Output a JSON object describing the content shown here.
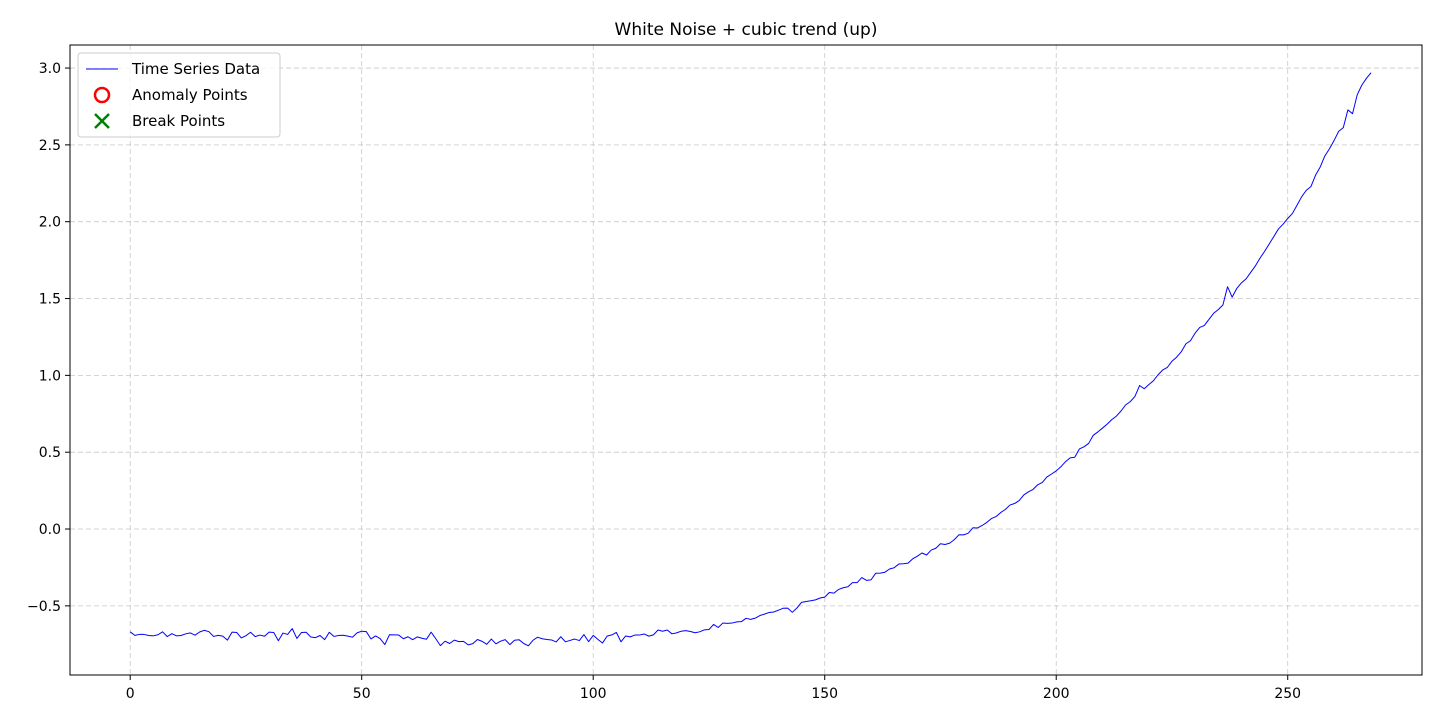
{
  "chart_data": {
    "type": "line",
    "title": "White Noise + cubic trend (up)",
    "xlabel": "",
    "ylabel": "",
    "xlim": [
      -13,
      279
    ],
    "ylim": [
      -0.95,
      3.15
    ],
    "xticks": [
      0,
      50,
      100,
      150,
      200,
      250
    ],
    "yticks": [
      -0.5,
      0.0,
      0.5,
      1.0,
      1.5,
      2.0,
      2.5,
      3.0
    ],
    "xtick_labels": [
      "0",
      "50",
      "100",
      "150",
      "200",
      "250"
    ],
    "ytick_labels": [
      "−0.5",
      "0.0",
      "0.5",
      "1.0",
      "1.5",
      "2.0",
      "2.5",
      "3.0"
    ],
    "grid": true,
    "legend": {
      "placement": "top-left",
      "entries": [
        {
          "label": "Time Series Data",
          "marker": "line",
          "color": "#0000ff"
        },
        {
          "label": "Anomaly Points",
          "marker": "circle",
          "color": "#ff0000"
        },
        {
          "label": "Break Points",
          "marker": "x",
          "color": "#008000"
        }
      ]
    },
    "series": [
      {
        "name": "Time Series Data",
        "color": "#0000ff",
        "x_start": 0,
        "x_step": 1,
        "values": [
          -0.669,
          -0.692,
          -0.686,
          -0.686,
          -0.693,
          -0.695,
          -0.688,
          -0.669,
          -0.7,
          -0.681,
          -0.695,
          -0.693,
          -0.682,
          -0.676,
          -0.691,
          -0.67,
          -0.659,
          -0.668,
          -0.699,
          -0.692,
          -0.697,
          -0.723,
          -0.671,
          -0.673,
          -0.709,
          -0.694,
          -0.672,
          -0.7,
          -0.69,
          -0.698,
          -0.671,
          -0.673,
          -0.727,
          -0.677,
          -0.686,
          -0.648,
          -0.712,
          -0.673,
          -0.672,
          -0.703,
          -0.707,
          -0.693,
          -0.72,
          -0.672,
          -0.699,
          -0.693,
          -0.691,
          -0.697,
          -0.704,
          -0.676,
          -0.665,
          -0.668,
          -0.715,
          -0.696,
          -0.714,
          -0.752,
          -0.688,
          -0.689,
          -0.69,
          -0.714,
          -0.701,
          -0.72,
          -0.702,
          -0.711,
          -0.717,
          -0.671,
          -0.714,
          -0.759,
          -0.73,
          -0.745,
          -0.723,
          -0.733,
          -0.731,
          -0.754,
          -0.746,
          -0.719,
          -0.731,
          -0.75,
          -0.716,
          -0.747,
          -0.73,
          -0.72,
          -0.752,
          -0.724,
          -0.721,
          -0.745,
          -0.76,
          -0.724,
          -0.704,
          -0.714,
          -0.719,
          -0.722,
          -0.735,
          -0.701,
          -0.734,
          -0.725,
          -0.716,
          -0.726,
          -0.687,
          -0.733,
          -0.692,
          -0.718,
          -0.742,
          -0.697,
          -0.689,
          -0.673,
          -0.734,
          -0.696,
          -0.702,
          -0.69,
          -0.69,
          -0.683,
          -0.697,
          -0.689,
          -0.657,
          -0.665,
          -0.657,
          -0.682,
          -0.676,
          -0.665,
          -0.661,
          -0.667,
          -0.675,
          -0.669,
          -0.656,
          -0.654,
          -0.621,
          -0.641,
          -0.612,
          -0.614,
          -0.612,
          -0.604,
          -0.603,
          -0.581,
          -0.588,
          -0.58,
          -0.563,
          -0.554,
          -0.543,
          -0.54,
          -0.528,
          -0.516,
          -0.515,
          -0.542,
          -0.514,
          -0.477,
          -0.472,
          -0.467,
          -0.461,
          -0.449,
          -0.443,
          -0.413,
          -0.417,
          -0.393,
          -0.382,
          -0.376,
          -0.349,
          -0.349,
          -0.316,
          -0.334,
          -0.331,
          -0.288,
          -0.287,
          -0.281,
          -0.26,
          -0.252,
          -0.228,
          -0.226,
          -0.222,
          -0.194,
          -0.177,
          -0.156,
          -0.169,
          -0.137,
          -0.125,
          -0.096,
          -0.101,
          -0.092,
          -0.069,
          -0.037,
          -0.038,
          -0.027,
          0.008,
          0.007,
          0.023,
          0.043,
          0.068,
          0.081,
          0.107,
          0.127,
          0.156,
          0.166,
          0.185,
          0.222,
          0.242,
          0.258,
          0.288,
          0.303,
          0.339,
          0.358,
          0.378,
          0.405,
          0.438,
          0.463,
          0.467,
          0.521,
          0.535,
          0.557,
          0.61,
          0.632,
          0.657,
          0.683,
          0.712,
          0.735,
          0.768,
          0.808,
          0.829,
          0.863,
          0.934,
          0.913,
          0.94,
          0.965,
          1.004,
          1.035,
          1.052,
          1.092,
          1.118,
          1.153,
          1.205,
          1.226,
          1.275,
          1.312,
          1.325,
          1.365,
          1.404,
          1.428,
          1.458,
          1.577,
          1.509,
          1.566,
          1.602,
          1.628,
          1.67,
          1.712,
          1.762,
          1.807,
          1.855,
          1.904,
          1.953,
          1.984,
          2.021,
          2.053,
          2.107,
          2.162,
          2.204,
          2.228,
          2.302,
          2.355,
          2.427,
          2.474,
          2.528,
          2.588,
          2.612,
          2.728,
          2.703,
          2.825,
          2.889,
          2.933,
          2.97
        ]
      },
      {
        "name": "Anomaly Points",
        "color": "#ff0000",
        "points": []
      },
      {
        "name": "Break Points",
        "color": "#008000",
        "points": []
      }
    ]
  }
}
